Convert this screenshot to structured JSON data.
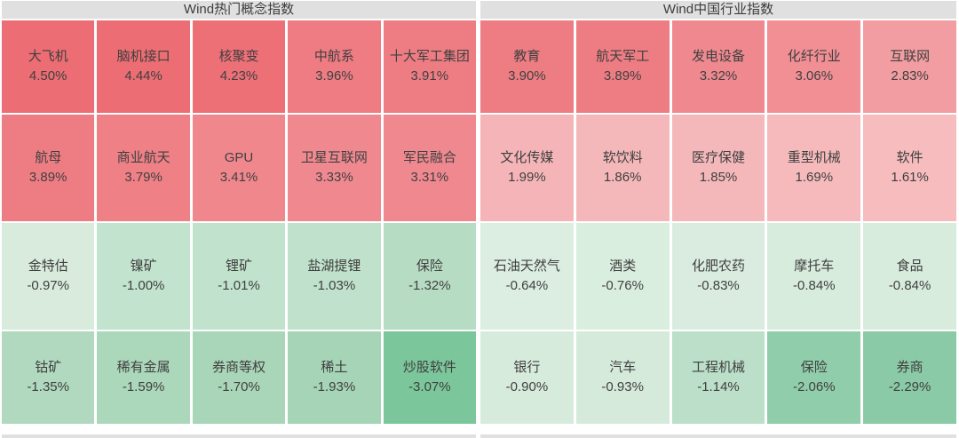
{
  "page": {
    "background": "#ffffff",
    "header_bg": "#e0e0e0",
    "text_color": "#3d3d3d"
  },
  "sections": [
    {
      "title": "Wind热门概念指数",
      "rows": [
        [
          {
            "name": "大飞机",
            "value": "4.50%",
            "color": "#ec6d73"
          },
          {
            "name": "脑机接口",
            "value": "4.44%",
            "color": "#ec6d73"
          },
          {
            "name": "核聚变",
            "value": "4.23%",
            "color": "#ed7077"
          },
          {
            "name": "中航系",
            "value": "3.96%",
            "color": "#ee7c82"
          },
          {
            "name": "十大军工集团",
            "value": "3.91%",
            "color": "#ee7d83"
          }
        ],
        [
          {
            "name": "航母",
            "value": "3.89%",
            "color": "#ee7d83"
          },
          {
            "name": "商业航天",
            "value": "3.79%",
            "color": "#ee8086"
          },
          {
            "name": "GPU",
            "value": "3.41%",
            "color": "#f0878d"
          },
          {
            "name": "卫星互联网",
            "value": "3.33%",
            "color": "#f0898f"
          },
          {
            "name": "军民融合",
            "value": "3.31%",
            "color": "#f0898f"
          }
        ],
        [
          {
            "name": "金特估",
            "value": "-0.97%",
            "color": "#d8ebdd"
          },
          {
            "name": "镍矿",
            "value": "-1.00%",
            "color": "#c2e3cd"
          },
          {
            "name": "锂矿",
            "value": "-1.01%",
            "color": "#c1e2cc"
          },
          {
            "name": "盐湖提锂",
            "value": "-1.03%",
            "color": "#c0e1cb"
          },
          {
            "name": "保险",
            "value": "-1.32%",
            "color": "#b7dcc4"
          }
        ],
        [
          {
            "name": "钴矿",
            "value": "-1.35%",
            "color": "#b0d9bf"
          },
          {
            "name": "稀有金属",
            "value": "-1.59%",
            "color": "#abd7bb"
          },
          {
            "name": "券商等权",
            "value": "-1.70%",
            "color": "#a9d6b9"
          },
          {
            "name": "稀土",
            "value": "-1.93%",
            "color": "#a5d4b6"
          },
          {
            "name": "炒股软件",
            "value": "-3.07%",
            "color": "#7cc69b"
          }
        ]
      ]
    },
    {
      "title": "Wind中国行业指数",
      "rows": [
        [
          {
            "name": "教育",
            "value": "3.90%",
            "color": "#ee7d83"
          },
          {
            "name": "航天军工",
            "value": "3.89%",
            "color": "#ee7d83"
          },
          {
            "name": "发电设备",
            "value": "3.32%",
            "color": "#f0898f"
          },
          {
            "name": "化纤行业",
            "value": "3.06%",
            "color": "#f18f95"
          },
          {
            "name": "互联网",
            "value": "2.83%",
            "color": "#f29da2"
          }
        ],
        [
          {
            "name": "文化传媒",
            "value": "1.99%",
            "color": "#f5b5b8"
          },
          {
            "name": "软饮料",
            "value": "1.86%",
            "color": "#f5b8ba"
          },
          {
            "name": "医疗保健",
            "value": "1.85%",
            "color": "#f5b8ba"
          },
          {
            "name": "重型机械",
            "value": "1.69%",
            "color": "#f6babc"
          },
          {
            "name": "软件",
            "value": "1.61%",
            "color": "#f6bcbe"
          }
        ],
        [
          {
            "name": "石油天然气",
            "value": "-0.64%",
            "color": "#dceee2"
          },
          {
            "name": "酒类",
            "value": "-0.76%",
            "color": "#daeee0"
          },
          {
            "name": "化肥农药",
            "value": "-0.83%",
            "color": "#d9ecdf"
          },
          {
            "name": "摩托车",
            "value": "-0.84%",
            "color": "#d8ecde"
          },
          {
            "name": "食品",
            "value": "-0.84%",
            "color": "#d8ecde"
          }
        ],
        [
          {
            "name": "银行",
            "value": "-0.90%",
            "color": "#d7ebdd"
          },
          {
            "name": "汽车",
            "value": "-0.93%",
            "color": "#d6eadc"
          },
          {
            "name": "工程机械",
            "value": "-1.14%",
            "color": "#bbdfc8"
          },
          {
            "name": "保险",
            "value": "-2.06%",
            "color": "#90cdab"
          },
          {
            "name": "券商",
            "value": "-2.29%",
            "color": "#8bcaa6"
          }
        ]
      ]
    }
  ],
  "chart_data": [
    {
      "type": "heatmap",
      "title": "Wind热门概念指数",
      "unit": "%",
      "grid": "4 rows x 5 cols, sorted descending by change",
      "color_rule": "red shades = positive change, green shades = negative change, intensity scales with magnitude",
      "categories": [
        "大飞机",
        "脑机接口",
        "核聚变",
        "中航系",
        "十大军工集团",
        "航母",
        "商业航天",
        "GPU",
        "卫星互联网",
        "军民融合",
        "金特估",
        "镍矿",
        "锂矿",
        "盐湖提锂",
        "保险",
        "钴矿",
        "稀有金属",
        "券商等权",
        "稀土",
        "炒股软件"
      ],
      "values": [
        4.5,
        4.44,
        4.23,
        3.96,
        3.91,
        3.89,
        3.79,
        3.41,
        3.33,
        3.31,
        -0.97,
        -1.0,
        -1.01,
        -1.03,
        -1.32,
        -1.35,
        -1.59,
        -1.7,
        -1.93,
        -3.07
      ]
    },
    {
      "type": "heatmap",
      "title": "Wind中国行业指数",
      "unit": "%",
      "grid": "4 rows x 5 cols, sorted descending by change",
      "color_rule": "red shades = positive change, green shades = negative change, intensity scales with magnitude",
      "categories": [
        "教育",
        "航天军工",
        "发电设备",
        "化纤行业",
        "互联网",
        "文化传媒",
        "软饮料",
        "医疗保健",
        "重型机械",
        "软件",
        "石油天然气",
        "酒类",
        "化肥农药",
        "摩托车",
        "食品",
        "银行",
        "汽车",
        "工程机械",
        "保险",
        "券商"
      ],
      "values": [
        3.9,
        3.89,
        3.32,
        3.06,
        2.83,
        1.99,
        1.86,
        1.85,
        1.69,
        1.61,
        -0.64,
        -0.76,
        -0.83,
        -0.84,
        -0.84,
        -0.9,
        -0.93,
        -1.14,
        -2.06,
        -2.29
      ]
    }
  ]
}
